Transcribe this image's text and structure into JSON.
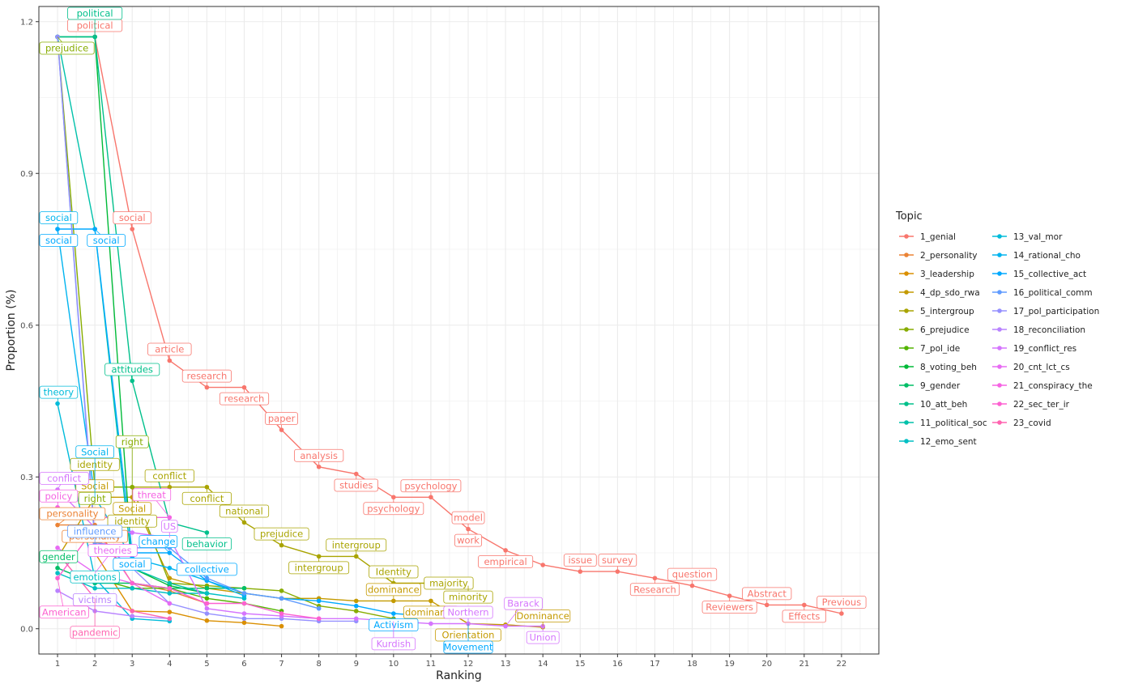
{
  "chart_data": {
    "type": "line",
    "title": "",
    "xlabel": "Ranking",
    "ylabel": "Proportion (%)",
    "xlim": [
      0.5,
      23
    ],
    "ylim": [
      -0.05,
      1.23
    ],
    "x_ticks": [
      1,
      2,
      3,
      4,
      5,
      6,
      7,
      8,
      9,
      10,
      11,
      12,
      13,
      14,
      15,
      16,
      17,
      18,
      19,
      20,
      21,
      22
    ],
    "y_ticks": [
      0.0,
      0.3,
      0.6,
      0.9,
      1.2
    ],
    "y_tick_labels": [
      "0.0",
      "0.3",
      "0.6",
      "0.9",
      "1.2"
    ],
    "grid": true,
    "legend_title": "Topic",
    "legend_position": "right",
    "series": [
      {
        "name": "1_genial",
        "color": "#F8766D",
        "points": [
          [
            2,
            1.17
          ],
          [
            3,
            0.79
          ],
          [
            4,
            0.53
          ],
          [
            5,
            0.477
          ],
          [
            6,
            0.477
          ],
          [
            7,
            0.393
          ],
          [
            8,
            0.32
          ],
          [
            9,
            0.306
          ],
          [
            10,
            0.26
          ],
          [
            11,
            0.26
          ],
          [
            12,
            0.197
          ],
          [
            13,
            0.155
          ],
          [
            14,
            0.126
          ],
          [
            15,
            0.113
          ],
          [
            16,
            0.113
          ],
          [
            17,
            0.1
          ],
          [
            18,
            0.085
          ],
          [
            19,
            0.065
          ],
          [
            20,
            0.047
          ],
          [
            21,
            0.047
          ],
          [
            22,
            0.03
          ]
        ],
        "labels": [
          {
            "x": 2,
            "text": "political"
          },
          {
            "x": 3,
            "text": "social"
          },
          {
            "x": 4,
            "text": "article"
          },
          {
            "x": 5,
            "text": "research"
          },
          {
            "x": 6,
            "text": "research"
          },
          {
            "x": 7,
            "text": "paper"
          },
          {
            "x": 8,
            "text": "analysis"
          },
          {
            "x": 9,
            "text": "studies"
          },
          {
            "x": 10,
            "text": "psychology"
          },
          {
            "x": 11,
            "text": "psychology"
          },
          {
            "x": 12,
            "text": "model"
          },
          {
            "x": 12,
            "text": "work"
          },
          {
            "x": 13,
            "text": "empirical"
          },
          {
            "x": 15,
            "text": "issue"
          },
          {
            "x": 16,
            "text": "survey"
          },
          {
            "x": 17,
            "text": "Research"
          },
          {
            "x": 18,
            "text": "question"
          },
          {
            "x": 19,
            "text": "Reviewers"
          },
          {
            "x": 20,
            "text": "Abstract"
          },
          {
            "x": 21,
            "text": "Effects"
          },
          {
            "x": 22,
            "text": "Previous"
          }
        ]
      },
      {
        "name": "2_personality",
        "color": "#EB8335",
        "points": [
          [
            1,
            0.205
          ],
          [
            2,
            0.205
          ],
          [
            3,
            0.09
          ],
          [
            4,
            0.075
          ],
          [
            5,
            0.05
          ]
        ],
        "labels": [
          {
            "x": 1,
            "text": "personality"
          },
          {
            "x": 2,
            "text": "personality"
          }
        ]
      },
      {
        "name": "3_leadership",
        "color": "#DA8F00",
        "points": [
          [
            2,
            0.15
          ],
          [
            3,
            0.035
          ],
          [
            4,
            0.033
          ],
          [
            5,
            0.016
          ],
          [
            6,
            0.012
          ],
          [
            7,
            0.005
          ]
        ],
        "labels": []
      },
      {
        "name": "4_dp_sdo_rwa",
        "color": "#C49A00",
        "points": [
          [
            1,
            0.14
          ],
          [
            2,
            0.26
          ],
          [
            3,
            0.26
          ],
          [
            4,
            0.1
          ],
          [
            5,
            0.08
          ],
          [
            6,
            0.07
          ],
          [
            7,
            0.06
          ],
          [
            8,
            0.06
          ],
          [
            9,
            0.055
          ],
          [
            10,
            0.055
          ],
          [
            11,
            0.055
          ],
          [
            12,
            0.01
          ],
          [
            13,
            0.008
          ],
          [
            14,
            0.003
          ]
        ],
        "labels": [
          {
            "x": 2,
            "text": "Social"
          },
          {
            "x": 3,
            "text": "Social"
          },
          {
            "x": 10,
            "text": "dominance"
          },
          {
            "x": 11,
            "text": "dominance"
          },
          {
            "x": 12,
            "text": "Orientation"
          },
          {
            "x": 14,
            "text": "Dominance"
          }
        ]
      },
      {
        "name": "5_intergroup",
        "color": "#A9A400",
        "points": [
          [
            2,
            0.28
          ],
          [
            3,
            0.28
          ],
          [
            4,
            0.28
          ],
          [
            5,
            0.28
          ],
          [
            6,
            0.21
          ],
          [
            7,
            0.165
          ],
          [
            8,
            0.143
          ],
          [
            9,
            0.143
          ],
          [
            10,
            0.09
          ],
          [
            11,
            0.09
          ],
          [
            12,
            0.085
          ]
        ],
        "labels": [
          {
            "x": 2,
            "text": "identity"
          },
          {
            "x": 3,
            "text": "identity"
          },
          {
            "x": 4,
            "text": "conflict"
          },
          {
            "x": 5,
            "text": "conflict"
          },
          {
            "x": 6,
            "text": "national"
          },
          {
            "x": 7,
            "text": "prejudice"
          },
          {
            "x": 8,
            "text": "intergroup"
          },
          {
            "x": 9,
            "text": "intergroup"
          },
          {
            "x": 10,
            "text": "Identity"
          },
          {
            "x": 11,
            "text": "majority"
          },
          {
            "x": 12,
            "text": "minority"
          }
        ]
      },
      {
        "name": "6_prejudice",
        "color": "#87AC00",
        "points": [
          [
            1,
            1.17
          ],
          [
            2,
            0.28
          ],
          [
            3,
            0.28
          ],
          [
            4,
            0.09
          ],
          [
            5,
            0.085
          ],
          [
            6,
            0.08
          ],
          [
            7,
            0.075
          ],
          [
            8,
            0.045
          ],
          [
            9,
            0.035
          ],
          [
            10,
            0.02
          ]
        ],
        "labels": [
          {
            "x": 1,
            "text": "prejudice"
          },
          {
            "x": 2,
            "text": "right"
          },
          {
            "x": 3,
            "text": "right"
          }
        ]
      },
      {
        "name": "7_pol_ide",
        "color": "#53B400",
        "points": [
          [
            2,
            0.1
          ],
          [
            3,
            0.08
          ],
          [
            4,
            0.08
          ],
          [
            5,
            0.06
          ],
          [
            6,
            0.05
          ],
          [
            7,
            0.035
          ]
        ],
        "labels": []
      },
      {
        "name": "8_voting_beh",
        "color": "#00BA38",
        "points": [
          [
            1,
            1.17
          ],
          [
            2,
            1.17
          ],
          [
            3,
            0.12
          ],
          [
            4,
            0.085
          ],
          [
            5,
            0.07
          ]
        ],
        "labels": []
      },
      {
        "name": "9_gender",
        "color": "#00BE67",
        "points": [
          [
            1,
            0.12
          ],
          [
            2,
            0.09
          ],
          [
            3,
            0.09
          ],
          [
            4,
            0.08
          ],
          [
            5,
            0.08
          ],
          [
            6,
            0.08
          ]
        ],
        "labels": [
          {
            "x": 1,
            "text": "gender"
          }
        ]
      },
      {
        "name": "10_att_beh",
        "color": "#00C08B",
        "points": [
          [
            1,
            1.17
          ],
          [
            2,
            1.17
          ],
          [
            3,
            0.49
          ],
          [
            4,
            0.21
          ],
          [
            5,
            0.19
          ]
        ],
        "labels": [
          {
            "x": 2,
            "text": "political"
          },
          {
            "x": 3,
            "text": "attitudes"
          },
          {
            "x": 5,
            "text": "behavior"
          }
        ]
      },
      {
        "name": "11_political_soc",
        "color": "#00C1AA",
        "points": [
          [
            1,
            1.17
          ],
          [
            2,
            0.79
          ],
          [
            3,
            0.12
          ],
          [
            4,
            0.09
          ],
          [
            5,
            0.07
          ]
        ],
        "labels": []
      },
      {
        "name": "12_emo_sent",
        "color": "#00BFC4",
        "points": [
          [
            1,
            0.11
          ],
          [
            2,
            0.08
          ],
          [
            3,
            0.08
          ],
          [
            4,
            0.07
          ],
          [
            5,
            0.07
          ],
          [
            6,
            0.06
          ]
        ],
        "labels": [
          {
            "x": 2,
            "text": "emotions"
          }
        ]
      },
      {
        "name": "13_val_mor",
        "color": "#00BBDA",
        "points": [
          [
            1,
            0.445
          ],
          [
            2,
            0.1
          ],
          [
            3,
            0.02
          ],
          [
            4,
            0.015
          ]
        ],
        "labels": [
          {
            "x": 1,
            "text": "theory"
          }
        ]
      },
      {
        "name": "14_rational_cho",
        "color": "#00B4EF",
        "points": [
          [
            1,
            0.79
          ],
          [
            2,
            0.26
          ],
          [
            3,
            0.14
          ],
          [
            4,
            0.12
          ],
          [
            5,
            0.095
          ],
          [
            6,
            0.065
          ]
        ],
        "labels": [
          {
            "x": 1,
            "text": "social"
          },
          {
            "x": 2,
            "text": "Social"
          }
        ]
      },
      {
        "name": "15_collective_act",
        "color": "#00A9FF",
        "points": [
          [
            1,
            0.79
          ],
          [
            2,
            0.79
          ],
          [
            3,
            0.15
          ],
          [
            4,
            0.15
          ],
          [
            5,
            0.095
          ],
          [
            6,
            0.07
          ],
          [
            7,
            0.06
          ],
          [
            8,
            0.055
          ],
          [
            9,
            0.045
          ],
          [
            10,
            0.03
          ],
          [
            11,
            0.025
          ],
          [
            12,
            0.025
          ]
        ],
        "labels": [
          {
            "x": 1,
            "text": "social"
          },
          {
            "x": 2,
            "text": "social"
          },
          {
            "x": 3,
            "text": "social"
          },
          {
            "x": 4,
            "text": "change"
          },
          {
            "x": 5,
            "text": "collective"
          },
          {
            "x": 10,
            "text": "Activism"
          },
          {
            "x": 12,
            "text": "Movement"
          }
        ]
      },
      {
        "name": "16_political_comm",
        "color": "#619CFF",
        "points": [
          [
            1,
            1.17
          ],
          [
            2,
            0.17
          ],
          [
            3,
            0.16
          ],
          [
            4,
            0.16
          ],
          [
            5,
            0.1
          ],
          [
            6,
            0.07
          ],
          [
            7,
            0.06
          ],
          [
            8,
            0.04
          ]
        ],
        "labels": [
          {
            "x": 2,
            "text": "influence"
          }
        ]
      },
      {
        "name": "17_pol_participation",
        "color": "#9590FF",
        "points": [
          [
            1,
            1.17
          ],
          [
            2,
            0.18
          ],
          [
            3,
            0.12
          ],
          [
            4,
            0.05
          ],
          [
            5,
            0.03
          ],
          [
            6,
            0.02
          ],
          [
            7,
            0.02
          ],
          [
            8,
            0.015
          ],
          [
            9,
            0.015
          ]
        ],
        "labels": []
      },
      {
        "name": "18_reconciliation",
        "color": "#B983FF",
        "points": [
          [
            1,
            0.075
          ],
          [
            2,
            0.035
          ],
          [
            3,
            0.025
          ],
          [
            4,
            0.02
          ]
        ],
        "labels": [
          {
            "x": 2,
            "text": "victims"
          }
        ]
      },
      {
        "name": "19_conflict_res",
        "color": "#D575FE",
        "points": [
          [
            1,
            0.275
          ],
          [
            2,
            0.2
          ],
          [
            3,
            0.19
          ],
          [
            4,
            0.18
          ],
          [
            5,
            0.04
          ],
          [
            6,
            0.03
          ],
          [
            7,
            0.025
          ],
          [
            8,
            0.02
          ],
          [
            9,
            0.02
          ],
          [
            10,
            0.015
          ],
          [
            11,
            0.01
          ],
          [
            12,
            0.01
          ],
          [
            13,
            0.005
          ],
          [
            14,
            0.005
          ]
        ],
        "labels": [
          {
            "x": 1,
            "text": "conflict"
          },
          {
            "x": 4,
            "text": "US"
          },
          {
            "x": 10,
            "text": "Kurdish"
          },
          {
            "x": 12,
            "text": "Northern"
          },
          {
            "x": 13,
            "text": "Barack"
          },
          {
            "x": 14,
            "text": "Union"
          }
        ]
      },
      {
        "name": "20_cnt_lct_cs",
        "color": "#E76BF3",
        "points": [
          [
            1,
            0.16
          ],
          [
            2,
            0.11
          ],
          [
            3,
            0.09
          ],
          [
            4,
            0.05
          ]
        ],
        "labels": [
          {
            "x": 2,
            "text": "theories"
          }
        ]
      },
      {
        "name": "21_conspiracy_the",
        "color": "#F564E3",
        "points": [
          [
            1,
            0.24
          ],
          [
            2,
            0.22
          ],
          [
            3,
            0.22
          ],
          [
            4,
            0.22
          ]
        ],
        "labels": [
          {
            "x": 1,
            "text": "policy"
          },
          {
            "x": 4,
            "text": "threat"
          }
        ]
      },
      {
        "name": "22_sec_ter_ir",
        "color": "#FD61D1",
        "points": [
          [
            1,
            0.1
          ],
          [
            2,
            0.2
          ],
          [
            3,
            0.09
          ],
          [
            4,
            0.08
          ],
          [
            5,
            0.05
          ],
          [
            6,
            0.05
          ],
          [
            7,
            0.03
          ],
          [
            8,
            0.02
          ]
        ],
        "labels": [
          {
            "x": 1,
            "text": "American"
          }
        ]
      },
      {
        "name": "23_covid",
        "color": "#FF64B0",
        "points": [
          [
            1,
            0.15
          ],
          [
            2,
            0.06
          ],
          [
            3,
            0.035
          ],
          [
            4,
            0.02
          ]
        ],
        "labels": [
          {
            "x": 2,
            "text": "pandemic"
          }
        ]
      }
    ]
  }
}
